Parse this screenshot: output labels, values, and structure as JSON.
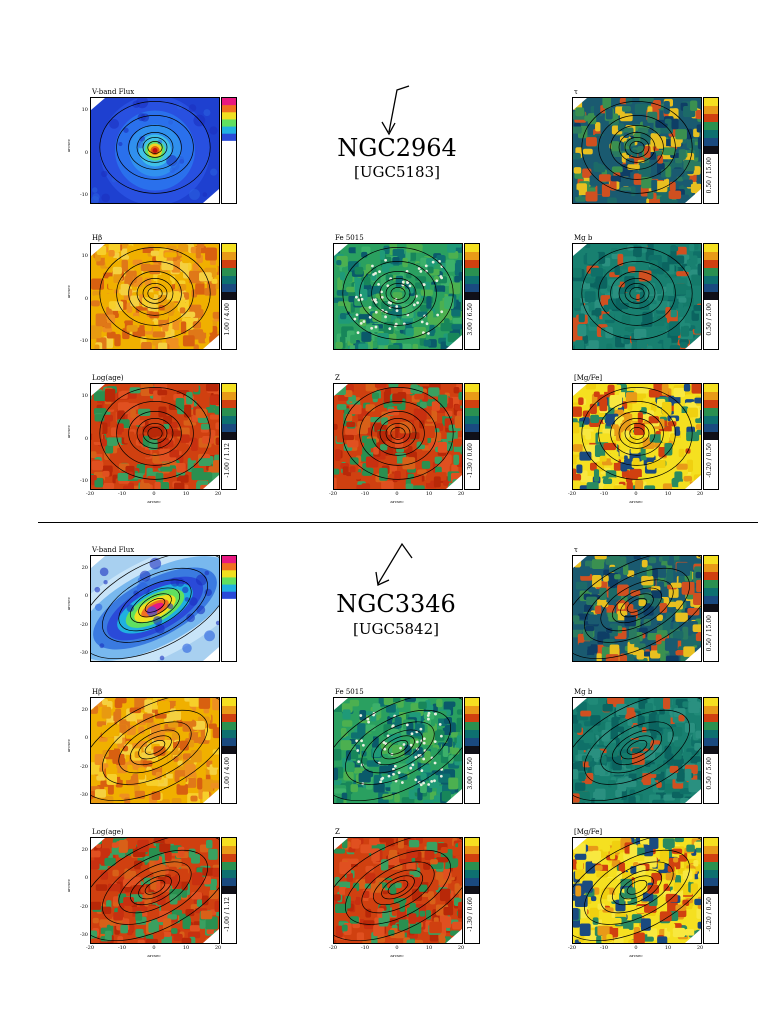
{
  "galaxies": [
    {
      "name": "NGC2964",
      "alt": "[UGC5183]",
      "panels": [
        {
          "id": "vflux",
          "title": "V-band Flux",
          "scheme": "jet",
          "cbar": "rainbow",
          "range": "",
          "yticks": [
            "10",
            "0",
            "-10"
          ],
          "xticks": []
        },
        {
          "id": "tau",
          "title": "τ",
          "scheme": "tau",
          "cbar": "dark",
          "range": "0.50 / 15.00",
          "yticks": [],
          "xticks": []
        },
        {
          "id": "hbeta",
          "title": "Hβ",
          "scheme": "hot",
          "cbar": "dark",
          "range": "1.00 / 4.00",
          "yticks": [
            "10",
            "0",
            "-10"
          ],
          "xticks": []
        },
        {
          "id": "fe5015",
          "title": "Fe 5015",
          "scheme": "fe",
          "cbar": "dark",
          "range": "3.00 / 6.50",
          "yticks": [],
          "xticks": []
        },
        {
          "id": "mgb",
          "title": "Mg b",
          "scheme": "mg",
          "cbar": "dark",
          "range": "0.50 / 5.00",
          "yticks": [],
          "xticks": []
        },
        {
          "id": "logage",
          "title": "Log(age)",
          "scheme": "age",
          "cbar": "dark",
          "range": "-1.00 / 1.12",
          "yticks": [
            "10",
            "0",
            "-10"
          ],
          "xticks": [
            "-20",
            "-10",
            "0",
            "10",
            "20"
          ]
        },
        {
          "id": "z",
          "title": "Z",
          "scheme": "age",
          "cbar": "dark",
          "range": "-1.30 / 0.60",
          "yticks": [],
          "xticks": [
            "-20",
            "-10",
            "0",
            "10",
            "20"
          ]
        },
        {
          "id": "mgfe",
          "title": "[Mg/Fe]",
          "scheme": "mgfe",
          "cbar": "dark",
          "range": "-0.20 / 0.50",
          "yticks": [],
          "xticks": [
            "-20",
            "-10",
            "0",
            "10",
            "20"
          ]
        }
      ]
    },
    {
      "name": "NGC3346",
      "alt": "[UGC5842]",
      "panels": [
        {
          "id": "vflux",
          "title": "V-band Flux",
          "scheme": "jet2",
          "cbar": "rainbow",
          "range": "",
          "yticks": [
            "20",
            "0",
            "-20",
            "-30"
          ],
          "xticks": []
        },
        {
          "id": "tau",
          "title": "τ",
          "scheme": "tau",
          "cbar": "dark",
          "range": "0.50 / 15.00",
          "yticks": [],
          "xticks": []
        },
        {
          "id": "hbeta",
          "title": "Hβ",
          "scheme": "hot",
          "cbar": "dark",
          "range": "1.00 / 4.00",
          "yticks": [
            "20",
            "0",
            "-20",
            "-30"
          ],
          "xticks": []
        },
        {
          "id": "fe5015",
          "title": "Fe 5015",
          "scheme": "fe",
          "cbar": "dark",
          "range": "3.00 / 6.50",
          "yticks": [],
          "xticks": []
        },
        {
          "id": "mgb",
          "title": "Mg b",
          "scheme": "mg",
          "cbar": "dark",
          "range": "0.50 / 5.00",
          "yticks": [],
          "xticks": []
        },
        {
          "id": "logage",
          "title": "Log(age)",
          "scheme": "age",
          "cbar": "dark",
          "range": "-1.00 / 1.12",
          "yticks": [
            "20",
            "0",
            "-20",
            "-30"
          ],
          "xticks": [
            "-20",
            "-10",
            "0",
            "10",
            "20"
          ]
        },
        {
          "id": "z",
          "title": "Z",
          "scheme": "age",
          "cbar": "dark",
          "range": "-1.30 / 0.60",
          "yticks": [],
          "xticks": [
            "-20",
            "-10",
            "0",
            "10",
            "20"
          ]
        },
        {
          "id": "mgfe",
          "title": "[Mg/Fe]",
          "scheme": "mgfe",
          "cbar": "dark",
          "range": "-0.20 / 0.50",
          "yticks": [],
          "xticks": [
            "-20",
            "-10",
            "0",
            "10",
            "20"
          ]
        }
      ]
    }
  ],
  "axis_name": "arcsec"
}
